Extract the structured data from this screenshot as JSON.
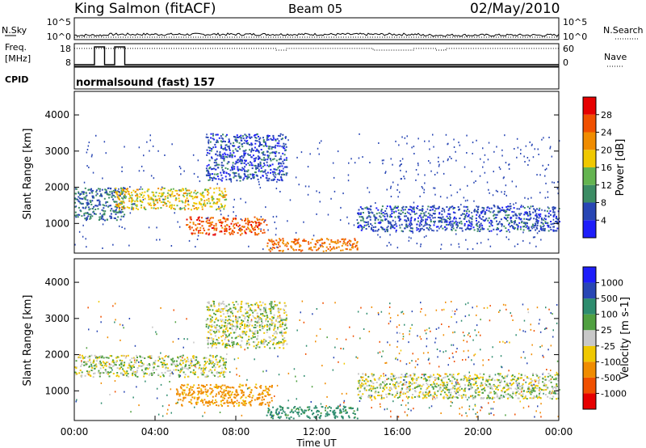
{
  "header": {
    "station": "King Salmon (fitACF)",
    "beam": "Beam 05",
    "date": "02/May/2010"
  },
  "side_labels": {
    "nsky": "N.Sky",
    "freq_line1": "Freq.",
    "freq_line2": "[MHz]",
    "cpid": "CPID",
    "nsearch": "N.Search",
    "nave": "Nave"
  },
  "cpid_text": "normalsound (fast) 157",
  "colors": {
    "power_scale": [
      "#1e1efa",
      "#2846b4",
      "#3c8c64",
      "#64b450",
      "#f0c800",
      "#f08c00",
      "#f05000",
      "#e60000"
    ],
    "velocity_scale": [
      "#e60000",
      "#f05000",
      "#f08c00",
      "#f0c800",
      "#c8c8c8",
      "#50a040",
      "#2d8c6e",
      "#2846b4",
      "#1e1efa"
    ]
  },
  "chart_data": [
    {
      "type": "line",
      "name": "nsky_nsearch",
      "left_ticks": [
        "10^5",
        "10^0"
      ],
      "right_ticks": [
        "10^5",
        "10^0"
      ],
      "x_range_hours": [
        0,
        24
      ]
    },
    {
      "type": "line",
      "name": "frequency_nave",
      "left_ticks": [
        "18",
        "8"
      ],
      "right_ticks": [
        "60",
        "0"
      ],
      "frequency_segments_hours": [
        [
          0,
          1,
          8
        ],
        [
          1,
          1.5,
          18
        ],
        [
          1.5,
          2.0,
          8
        ],
        [
          2.0,
          2.5,
          18
        ],
        [
          2.5,
          24,
          8
        ]
      ],
      "nave_level": 55,
      "nave_dips_hours": [
        [
          10.0,
          10.5
        ],
        [
          14.8,
          16.8
        ],
        [
          17.9,
          18.4
        ]
      ]
    },
    {
      "type": "heatmap",
      "name": "power",
      "ylabel": "Slant Range [km]",
      "yticks": [
        "1000",
        "2000",
        "3000",
        "4000"
      ],
      "ylim": [
        180,
        4650
      ],
      "xlim": [
        0,
        24
      ],
      "colorbar_label": "Power [dB]",
      "colorbar_ticks": [
        "4",
        "8",
        "12",
        "16",
        "20",
        "24",
        "28"
      ],
      "features": [
        {
          "t0": 0.0,
          "t1": 2.5,
          "r0": 1100,
          "r1": 2000,
          "value": 8
        },
        {
          "t0": 2.0,
          "t1": 7.5,
          "r0": 1400,
          "r1": 2000,
          "value": 18
        },
        {
          "t0": 5.5,
          "t1": 9.5,
          "r0": 700,
          "r1": 1200,
          "value": 26
        },
        {
          "t0": 6.5,
          "t1": 10.5,
          "r0": 2200,
          "r1": 3500,
          "value": 6
        },
        {
          "t0": 9.5,
          "t1": 14.0,
          "r0": 250,
          "r1": 600,
          "value": 24
        },
        {
          "t0": 14.0,
          "t1": 24.0,
          "r0": 800,
          "r1": 1500,
          "value": 6
        }
      ]
    },
    {
      "type": "heatmap",
      "name": "velocity",
      "ylabel": "Slant Range [km]",
      "yticks": [
        "1000",
        "2000",
        "3000",
        "4000"
      ],
      "ylim": [
        180,
        4650
      ],
      "xlim": [
        0,
        24
      ],
      "xticks": [
        "00:00",
        "04:00",
        "08:00",
        "12:00",
        "16:00",
        "20:00",
        "00:00"
      ],
      "xlabel": "Time UT",
      "colorbar_label": "Velocity [m s-1]",
      "colorbar_ticks": [
        "-1000",
        "-500",
        "-100",
        "-25",
        "25",
        "100",
        "500",
        "1000"
      ],
      "features": [
        {
          "t0": 0.0,
          "t1": 7.5,
          "r0": 1400,
          "r1": 2000,
          "value": 0
        },
        {
          "t0": 5.0,
          "t1": 9.8,
          "r0": 600,
          "r1": 1200,
          "value": -150
        },
        {
          "t0": 9.5,
          "t1": 14.0,
          "r0": 250,
          "r1": 600,
          "value": 150
        },
        {
          "t0": 6.5,
          "t1": 10.5,
          "r0": 2200,
          "r1": 3500,
          "value": 0
        },
        {
          "t0": 14.0,
          "t1": 24.0,
          "r0": 800,
          "r1": 1500,
          "value": 0
        }
      ]
    }
  ]
}
